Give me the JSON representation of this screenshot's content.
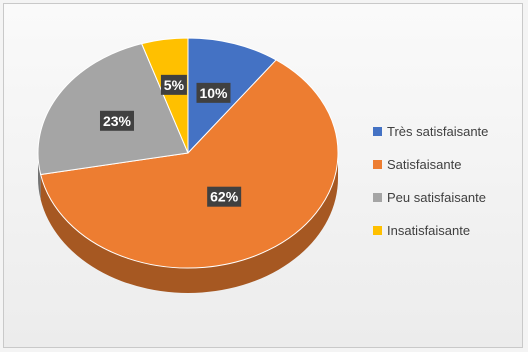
{
  "chart_data": {
    "type": "pie",
    "title": "",
    "categories": [
      "Très satisfaisante",
      "Satisfaisante",
      "Peu satisfaisante",
      "Insatisfaisante"
    ],
    "values": [
      10,
      62,
      23,
      5
    ],
    "data_labels": [
      "10%",
      "62%",
      "23%",
      "5%"
    ],
    "colors": [
      "#4472C4",
      "#ED7D31",
      "#A5A5A5",
      "#FFC000"
    ],
    "legend": "right",
    "style": "3d"
  }
}
